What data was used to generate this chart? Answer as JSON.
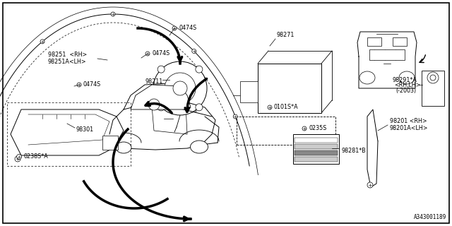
{
  "background_color": "#ffffff",
  "border_color": "#000000",
  "fig_width": 6.4,
  "fig_height": 3.2,
  "dpi": 100,
  "diagram_id": "A343001189",
  "label_fontsize": 5.8,
  "labels": {
    "98251_rh": "98251  <RH>",
    "98251a_lh": "98251A<LH>",
    "0474s_1": "0474S",
    "0474s_2": "0474S",
    "0474s_3": "0474S",
    "98211": "98211",
    "98271": "98271",
    "0101s": "0101S*A",
    "98291": "98291*A",
    "rh_lh": "<RH,LH>",
    "2003": "(-2003)",
    "0235s": "0235S",
    "98281": "98281*B",
    "98201_rh": "98201 <RH>",
    "98201a_lh": "98201A<LH>",
    "98301": "98301",
    "0238s": "0238S*A"
  }
}
